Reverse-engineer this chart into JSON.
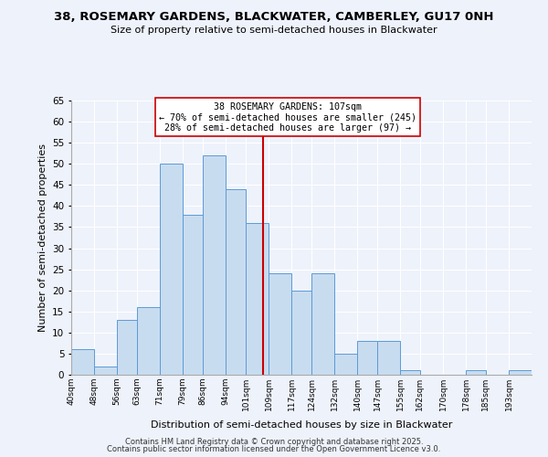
{
  "title": "38, ROSEMARY GARDENS, BLACKWATER, CAMBERLEY, GU17 0NH",
  "subtitle": "Size of property relative to semi-detached houses in Blackwater",
  "xlabel": "Distribution of semi-detached houses by size in Blackwater",
  "ylabel": "Number of semi-detached properties",
  "bin_labels": [
    "40sqm",
    "48sqm",
    "56sqm",
    "63sqm",
    "71sqm",
    "79sqm",
    "86sqm",
    "94sqm",
    "101sqm",
    "109sqm",
    "117sqm",
    "124sqm",
    "132sqm",
    "140sqm",
    "147sqm",
    "155sqm",
    "162sqm",
    "170sqm",
    "178sqm",
    "185sqm",
    "193sqm"
  ],
  "bin_edges": [
    40,
    48,
    56,
    63,
    71,
    79,
    86,
    94,
    101,
    109,
    117,
    124,
    132,
    140,
    147,
    155,
    162,
    170,
    178,
    185,
    193,
    201
  ],
  "counts": [
    6,
    2,
    13,
    16,
    50,
    38,
    52,
    44,
    36,
    24,
    20,
    24,
    5,
    8,
    8,
    1,
    0,
    0,
    1,
    0,
    1
  ],
  "bar_color": "#c8dcf0",
  "bar_edge_color": "#5b9bd5",
  "property_value": 107,
  "vline_color": "#cc0000",
  "annotation_line1": "38 ROSEMARY GARDENS: 107sqm",
  "annotation_line2": "← 70% of semi-detached houses are smaller (245)",
  "annotation_line3": "28% of semi-detached houses are larger (97) →",
  "annotation_box_color": "#ffffff",
  "annotation_box_edge": "#cc0000",
  "ylim": [
    0,
    65
  ],
  "yticks": [
    0,
    5,
    10,
    15,
    20,
    25,
    30,
    35,
    40,
    45,
    50,
    55,
    60,
    65
  ],
  "footer_line1": "Contains HM Land Registry data © Crown copyright and database right 2025.",
  "footer_line2": "Contains public sector information licensed under the Open Government Licence v3.0.",
  "background_color": "#eef2fb"
}
